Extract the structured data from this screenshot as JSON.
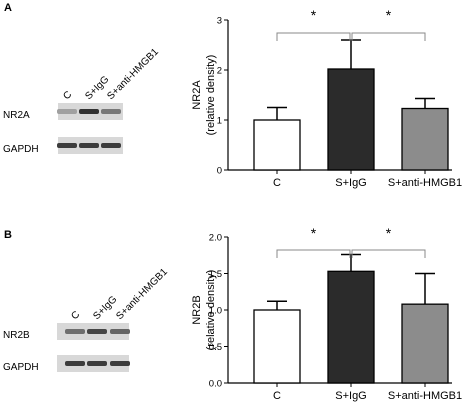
{
  "panels": [
    {
      "label": "A",
      "blot": {
        "lane_labels": [
          "C",
          "S+IgG",
          "S+anti-HMGB1"
        ],
        "row_labels": [
          "NR2A",
          "GAPDH"
        ],
        "band_intensity": [
          [
            0.35,
            0.9,
            0.55
          ],
          [
            0.85,
            0.85,
            0.85
          ]
        ]
      }
    },
    {
      "label": "B",
      "blot": {
        "lane_labels": [
          "C",
          "S+IgG",
          "S+anti-HMGB1"
        ],
        "row_labels": [
          "NR2B",
          "GAPDH"
        ],
        "band_intensity": [
          [
            0.6,
            0.8,
            0.65
          ],
          [
            0.85,
            0.85,
            0.85
          ]
        ]
      }
    }
  ],
  "chart_data": [
    {
      "type": "bar",
      "title": "",
      "ylabel": "NR2A",
      "ylabel_sub": "(relative density)",
      "categories": [
        "C",
        "S+IgG",
        "S+anti-HMGB1"
      ],
      "values": [
        1.0,
        2.02,
        1.23
      ],
      "errors": [
        0.25,
        0.58,
        0.2
      ],
      "bar_colors": [
        "#ffffff",
        "#2b2b2b",
        "#8c8c8c"
      ],
      "ylim": [
        0,
        3
      ],
      "yticks": [
        "0",
        "1",
        "2",
        "3"
      ],
      "significance": [
        {
          "from": 0,
          "to": 1,
          "label": "*"
        },
        {
          "from": 1,
          "to": 2,
          "label": "*"
        }
      ],
      "grid": false
    },
    {
      "type": "bar",
      "title": "",
      "ylabel": "NR2B",
      "ylabel_sub": "(relative density)",
      "categories": [
        "C",
        "S+IgG",
        "S+anti-HMGB1"
      ],
      "values": [
        1.0,
        1.53,
        1.08
      ],
      "errors": [
        0.12,
        0.23,
        0.42
      ],
      "bar_colors": [
        "#ffffff",
        "#2b2b2b",
        "#8c8c8c"
      ],
      "ylim": [
        0,
        2.0
      ],
      "yticks": [
        "0.0",
        "0.5",
        "1.0",
        "1.5",
        "2.0"
      ],
      "significance": [
        {
          "from": 0,
          "to": 1,
          "label": "*"
        },
        {
          "from": 1,
          "to": 2,
          "label": "*"
        }
      ],
      "grid": false
    }
  ]
}
